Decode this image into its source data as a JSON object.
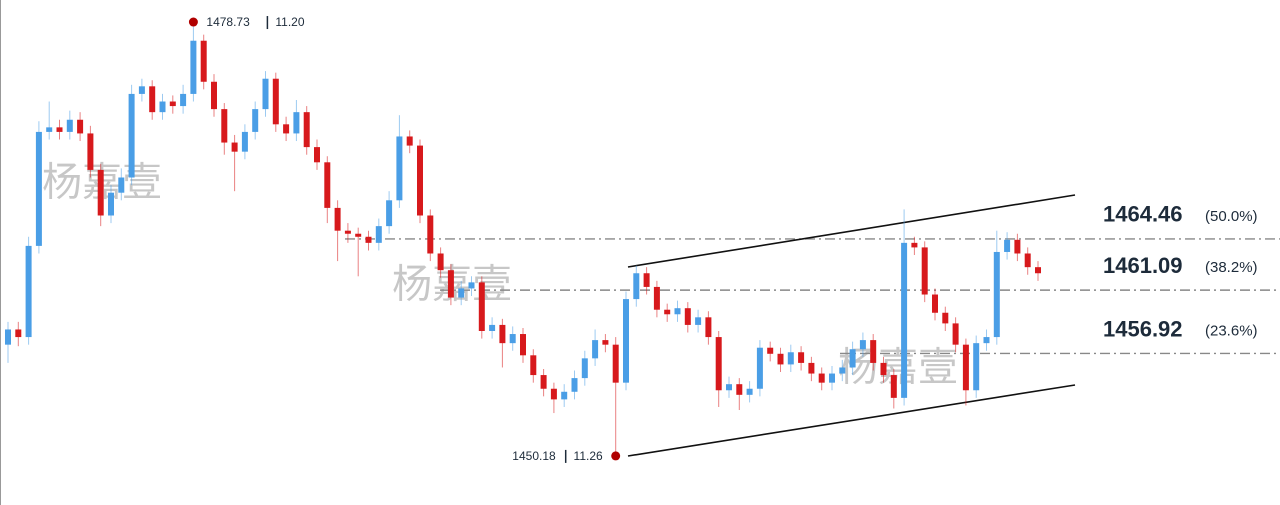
{
  "chart_data": {
    "type": "candlestick",
    "ylim": [
      1446.95,
      1480.18
    ],
    "up_color": "#4a9ee6",
    "down_color": "#d7191c",
    "watermark": "杨嘉壹",
    "open": [
      1457.5,
      1458.5,
      1458.0,
      1464.0,
      1471.5,
      1471.8,
      1471.5,
      1472.3,
      1471.4,
      1469.0,
      1466.0,
      1467.5,
      1468.5,
      1474.0,
      1474.5,
      1472.8,
      1473.5,
      1473.2,
      1474.0,
      1477.5,
      1474.8,
      1473.0,
      1470.8,
      1470.2,
      1471.5,
      1473.0,
      1475.0,
      1472.0,
      1471.4,
      1472.8,
      1470.5,
      1469.5,
      1466.5,
      1465.0,
      1464.8,
      1464.6,
      1464.2,
      1465.3,
      1467.0,
      1471.2,
      1470.6,
      1466.0,
      1463.5,
      1462.4,
      1460.6,
      1461.2,
      1461.6,
      1458.4,
      1458.8,
      1457.6,
      1458.2,
      1456.8,
      1455.5,
      1454.6,
      1453.9,
      1454.4,
      1455.3,
      1456.6,
      1457.8,
      1457.5,
      1455.0,
      1460.5,
      1462.2,
      1461.3,
      1459.8,
      1459.5,
      1459.9,
      1458.8,
      1459.3,
      1458.0,
      1454.5,
      1454.9,
      1454.2,
      1454.6,
      1457.3,
      1456.9,
      1456.2,
      1457.0,
      1456.3,
      1455.6,
      1455.0,
      1455.6,
      1456.0,
      1457.2,
      1457.8,
      1456.3,
      1455.5,
      1454.0,
      1464.2,
      1463.9,
      1460.8,
      1459.6,
      1458.9,
      1457.5,
      1454.5,
      1457.6,
      1458.0,
      1463.6,
      1464.4,
      1463.5,
      1462.6
    ],
    "high": [
      1459.0,
      1459.0,
      1464.6,
      1472.2,
      1473.5,
      1472.3,
      1472.9,
      1472.8,
      1471.9,
      1469.4,
      1468.0,
      1469.1,
      1474.6,
      1475.0,
      1474.9,
      1474.0,
      1473.9,
      1474.6,
      1478.73,
      1477.9,
      1475.3,
      1473.4,
      1471.3,
      1472.0,
      1473.5,
      1475.5,
      1475.4,
      1472.5,
      1473.6,
      1473.2,
      1471.0,
      1469.9,
      1467.0,
      1465.5,
      1465.2,
      1465.0,
      1465.8,
      1467.6,
      1472.6,
      1471.6,
      1471.0,
      1466.4,
      1463.9,
      1462.8,
      1461.7,
      1462.0,
      1462.0,
      1459.3,
      1459.2,
      1458.7,
      1458.6,
      1457.2,
      1455.9,
      1455.0,
      1454.9,
      1455.8,
      1457.1,
      1458.5,
      1458.2,
      1458.0,
      1461.0,
      1462.7,
      1462.6,
      1461.7,
      1460.2,
      1460.4,
      1460.3,
      1459.8,
      1459.7,
      1458.4,
      1455.4,
      1455.3,
      1455.1,
      1457.8,
      1457.7,
      1457.3,
      1457.5,
      1457.4,
      1456.7,
      1456.0,
      1456.1,
      1456.5,
      1457.7,
      1458.3,
      1458.2,
      1456.7,
      1455.9,
      1466.4,
      1464.6,
      1464.3,
      1461.2,
      1460.0,
      1459.3,
      1457.9,
      1458.1,
      1458.5,
      1465.0,
      1464.9,
      1464.8,
      1463.9,
      1463.0
    ],
    "low": [
      1456.3,
      1457.4,
      1457.5,
      1463.5,
      1471.0,
      1471.0,
      1471.0,
      1470.9,
      1468.5,
      1465.3,
      1465.5,
      1467.0,
      1468.0,
      1473.5,
      1472.3,
      1472.3,
      1472.7,
      1472.7,
      1473.5,
      1474.3,
      1472.5,
      1470.0,
      1467.6,
      1469.7,
      1471.0,
      1472.5,
      1471.5,
      1470.9,
      1470.9,
      1470.0,
      1469.0,
      1465.5,
      1463.0,
      1464.2,
      1462.0,
      1463.7,
      1463.7,
      1464.8,
      1466.5,
      1470.1,
      1465.5,
      1463.0,
      1461.9,
      1460.1,
      1460.1,
      1460.7,
      1457.9,
      1457.9,
      1456.0,
      1457.1,
      1456.3,
      1455.0,
      1454.1,
      1453.0,
      1453.4,
      1453.9,
      1454.8,
      1456.1,
      1457.0,
      1450.18,
      1454.5,
      1460.0,
      1460.8,
      1459.3,
      1459.0,
      1459.0,
      1458.3,
      1458.3,
      1457.5,
      1453.4,
      1454.0,
      1453.2,
      1453.7,
      1454.1,
      1456.4,
      1455.7,
      1455.7,
      1455.8,
      1455.1,
      1454.5,
      1454.5,
      1455.1,
      1455.5,
      1456.7,
      1455.8,
      1455.0,
      1453.3,
      1453.5,
      1463.4,
      1460.3,
      1459.1,
      1458.4,
      1457.0,
      1453.5,
      1454.0,
      1457.1,
      1457.5,
      1463.1,
      1463.0,
      1462.1,
      1461.7
    ],
    "close": [
      1458.5,
      1458.0,
      1464.0,
      1471.5,
      1471.8,
      1471.5,
      1472.3,
      1471.4,
      1469.0,
      1466.0,
      1467.5,
      1468.5,
      1474.0,
      1474.5,
      1472.8,
      1473.5,
      1473.2,
      1474.0,
      1477.5,
      1474.8,
      1473.0,
      1470.8,
      1470.2,
      1471.5,
      1473.0,
      1475.0,
      1472.0,
      1471.4,
      1472.8,
      1470.5,
      1469.5,
      1466.5,
      1465.0,
      1464.8,
      1464.6,
      1464.2,
      1465.3,
      1467.0,
      1471.2,
      1470.6,
      1466.0,
      1463.5,
      1462.4,
      1460.6,
      1461.2,
      1461.6,
      1458.4,
      1458.8,
      1457.6,
      1458.2,
      1456.8,
      1455.5,
      1454.6,
      1453.9,
      1454.4,
      1455.3,
      1456.6,
      1457.8,
      1457.5,
      1455.0,
      1460.5,
      1462.2,
      1461.3,
      1459.8,
      1459.5,
      1459.9,
      1458.8,
      1459.3,
      1458.0,
      1454.5,
      1454.9,
      1454.2,
      1454.6,
      1457.3,
      1456.9,
      1456.2,
      1457.0,
      1456.3,
      1455.6,
      1455.0,
      1455.6,
      1456.0,
      1457.2,
      1457.8,
      1456.3,
      1455.5,
      1454.0,
      1464.2,
      1463.9,
      1460.8,
      1459.6,
      1458.9,
      1457.5,
      1454.5,
      1457.6,
      1458.0,
      1463.6,
      1464.4,
      1463.5,
      1462.6,
      1462.2
    ],
    "high_marker": {
      "value": 1478.73,
      "time": "11.20"
    },
    "low_marker": {
      "value": 1450.18,
      "time": "11.26"
    },
    "fib_levels": [
      {
        "value": 1464.46,
        "label": "(50.0%)"
      },
      {
        "value": 1461.09,
        "label": "(38.2%)"
      },
      {
        "value": 1456.92,
        "label": "(23.6%)"
      }
    ]
  }
}
